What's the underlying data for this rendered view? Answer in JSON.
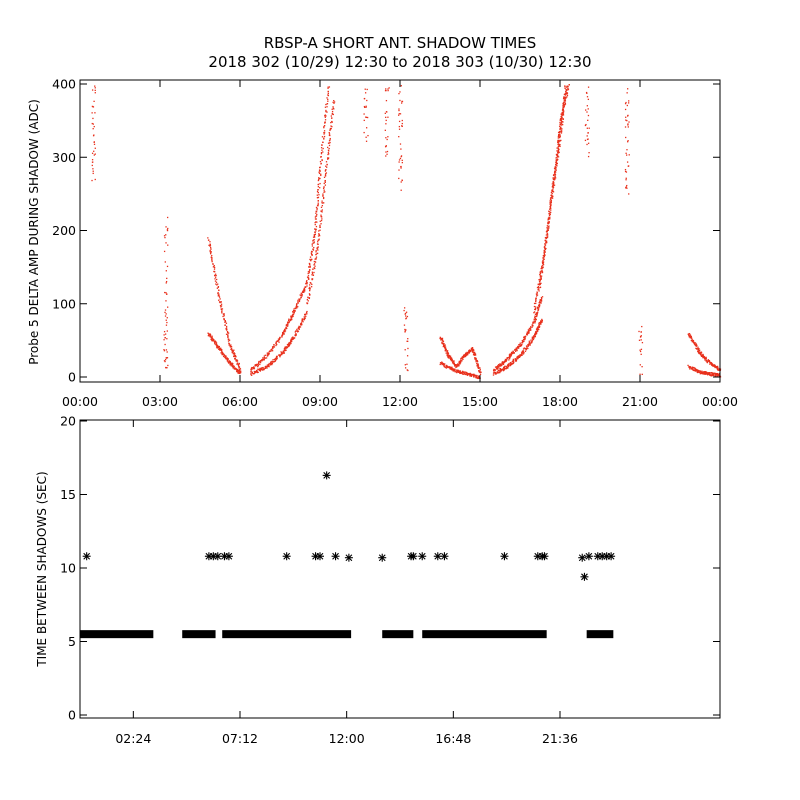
{
  "title_line1": "RBSP-A SHORT ANT. SHADOW TIMES",
  "title_line2": "2018 302 (10/29) 12:30 to 2018 303 (10/30) 12:30",
  "colors": {
    "red": "#e8301c",
    "black": "#000000"
  },
  "chart_data": [
    {
      "type": "scatter",
      "ylabel": "Probe 5 DELTA AMP DURING SHADOW (ADC)",
      "xlim": [
        0,
        24
      ],
      "ylim": [
        0,
        400
      ],
      "xtick_labels": [
        "00:00",
        "03:00",
        "06:00",
        "09:00",
        "12:00",
        "15:00",
        "18:00",
        "21:00",
        "00:00"
      ],
      "xtick_values": [
        0,
        3,
        6,
        9,
        12,
        15,
        18,
        21,
        24
      ],
      "ytick_labels": [
        "0",
        "100",
        "200",
        "300",
        "400"
      ],
      "ytick_values": [
        0,
        100,
        200,
        300,
        400
      ],
      "marker": "red dots",
      "tracks": [
        {
          "x": [
            4.8,
            5.2,
            5.6,
            6.0
          ],
          "y": [
            60,
            40,
            20,
            5
          ]
        },
        {
          "x": [
            4.8,
            5.2,
            5.6,
            6.0
          ],
          "y": [
            190,
            110,
            45,
            10
          ]
        },
        {
          "x": [
            6.4,
            7.0,
            7.6,
            8.0,
            8.5
          ],
          "y": [
            5,
            15,
            35,
            55,
            90
          ]
        },
        {
          "x": [
            6.4,
            7.0,
            7.6,
            8.0,
            8.5
          ],
          "y": [
            10,
            30,
            60,
            90,
            130
          ]
        },
        {
          "x": [
            8.5,
            8.8,
            9.0,
            9.3
          ],
          "y": [
            130,
            200,
            290,
            400
          ]
        },
        {
          "x": [
            8.5,
            8.9,
            9.2,
            9.5
          ],
          "y": [
            100,
            180,
            280,
            380
          ]
        },
        {
          "x": [
            13.5,
            13.8,
            14.1,
            14.4,
            14.7,
            15.0
          ],
          "y": [
            55,
            30,
            15,
            30,
            40,
            5
          ]
        },
        {
          "x": [
            13.5,
            14.0,
            14.5,
            15.0
          ],
          "y": [
            20,
            10,
            5,
            0
          ]
        },
        {
          "x": [
            15.5,
            16.0,
            16.5,
            17.0,
            17.3
          ],
          "y": [
            5,
            15,
            30,
            55,
            80
          ]
        },
        {
          "x": [
            15.5,
            16.0,
            16.5,
            17.0,
            17.3
          ],
          "y": [
            10,
            25,
            45,
            75,
            110
          ]
        },
        {
          "x": [
            17.2,
            17.5,
            17.8,
            18.0,
            18.3
          ],
          "y": [
            120,
            200,
            280,
            350,
            400
          ]
        },
        {
          "x": [
            17.0,
            17.4,
            17.7,
            18.0,
            18.2
          ],
          "y": [
            90,
            170,
            260,
            330,
            400
          ]
        },
        {
          "x": [
            22.8,
            23.2,
            23.6,
            24.0
          ],
          "y": [
            60,
            35,
            20,
            10
          ]
        },
        {
          "x": [
            22.8,
            23.2,
            23.6,
            24.0
          ],
          "y": [
            15,
            8,
            5,
            3
          ]
        }
      ],
      "vertical_bands": [
        {
          "x": 0.5,
          "ymin": 260,
          "ymax": 400
        },
        {
          "x": 3.2,
          "ymin": 0,
          "ymax": 220
        },
        {
          "x": 12.2,
          "ymin": 0,
          "ymax": 100
        },
        {
          "x": 21.0,
          "ymin": 0,
          "ymax": 70
        },
        {
          "x": 11.5,
          "ymin": 300,
          "ymax": 400
        },
        {
          "x": 12.0,
          "ymin": 250,
          "ymax": 400
        },
        {
          "x": 10.7,
          "ymin": 320,
          "ymax": 400
        },
        {
          "x": 19.0,
          "ymin": 300,
          "ymax": 400
        },
        {
          "x": 20.5,
          "ymin": 250,
          "ymax": 400
        }
      ]
    },
    {
      "type": "scatter",
      "ylabel": "TIME BETWEEN SHADOWS (SEC)",
      "xlim": [
        0,
        28.8
      ],
      "ylim": [
        0,
        20
      ],
      "xtick_labels": [
        "02:24",
        "07:12",
        "12:00",
        "16:48",
        "21:36"
      ],
      "xtick_values": [
        2.4,
        7.2,
        12.0,
        16.8,
        21.6
      ],
      "ytick_labels": [
        "0",
        "5",
        "10",
        "15",
        "20"
      ],
      "ytick_values": [
        0,
        5,
        10,
        15,
        20
      ],
      "marker": "*",
      "baseline_value": 5.5,
      "baseline_segments": [
        [
          0.0,
          3.3
        ],
        [
          4.6,
          6.1
        ],
        [
          6.4,
          12.2
        ],
        [
          13.6,
          15.0
        ],
        [
          15.4,
          21.0
        ],
        [
          22.8,
          24.0
        ]
      ],
      "points": [
        {
          "x": 0.3,
          "y": 10.8
        },
        {
          "x": 5.8,
          "y": 10.8
        },
        {
          "x": 6.0,
          "y": 10.8
        },
        {
          "x": 6.2,
          "y": 10.8
        },
        {
          "x": 6.5,
          "y": 10.8
        },
        {
          "x": 6.7,
          "y": 10.8
        },
        {
          "x": 9.3,
          "y": 10.8
        },
        {
          "x": 10.6,
          "y": 10.8
        },
        {
          "x": 10.8,
          "y": 10.8
        },
        {
          "x": 11.1,
          "y": 16.3
        },
        {
          "x": 11.5,
          "y": 10.8
        },
        {
          "x": 12.1,
          "y": 10.7
        },
        {
          "x": 13.6,
          "y": 10.7
        },
        {
          "x": 14.9,
          "y": 10.8
        },
        {
          "x": 15.0,
          "y": 10.8
        },
        {
          "x": 15.4,
          "y": 10.8
        },
        {
          "x": 16.1,
          "y": 10.8
        },
        {
          "x": 16.4,
          "y": 10.8
        },
        {
          "x": 19.1,
          "y": 10.8
        },
        {
          "x": 20.6,
          "y": 10.8
        },
        {
          "x": 20.8,
          "y": 10.8
        },
        {
          "x": 20.9,
          "y": 10.8
        },
        {
          "x": 22.6,
          "y": 10.7
        },
        {
          "x": 22.7,
          "y": 9.4
        },
        {
          "x": 22.9,
          "y": 10.8
        },
        {
          "x": 23.3,
          "y": 10.8
        },
        {
          "x": 23.5,
          "y": 10.8
        },
        {
          "x": 23.7,
          "y": 10.8
        },
        {
          "x": 23.9,
          "y": 10.8
        }
      ]
    }
  ]
}
